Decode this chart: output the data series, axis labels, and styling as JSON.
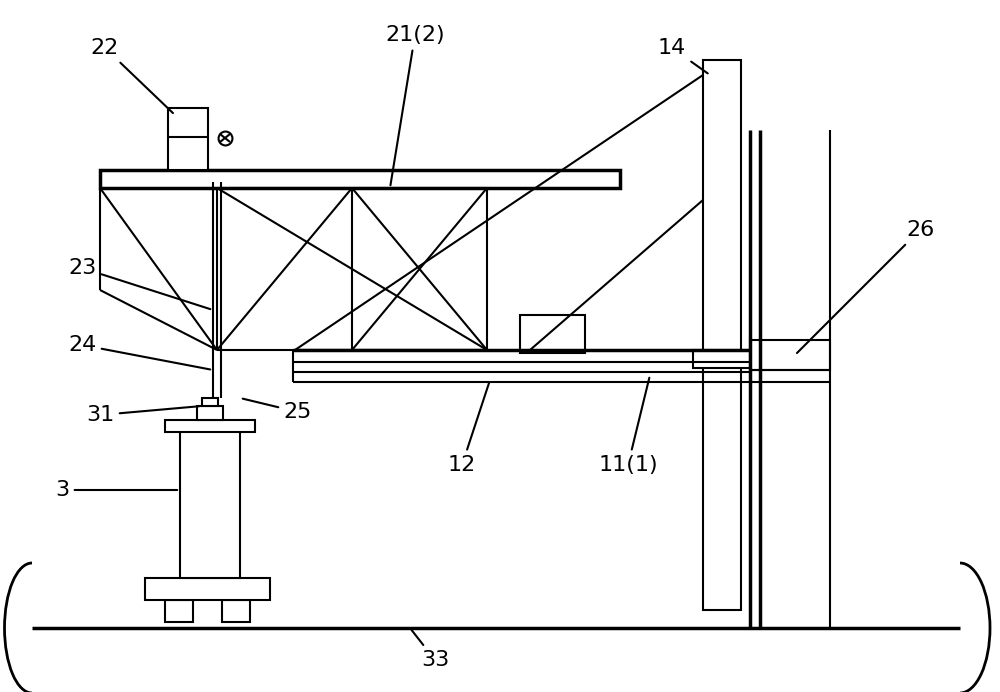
{
  "bg_color": "#ffffff",
  "lc": "#000000",
  "lw": 1.5,
  "tlw": 2.5,
  "fig_width": 10.0,
  "fig_height": 6.92,
  "label_fontsize": 16
}
